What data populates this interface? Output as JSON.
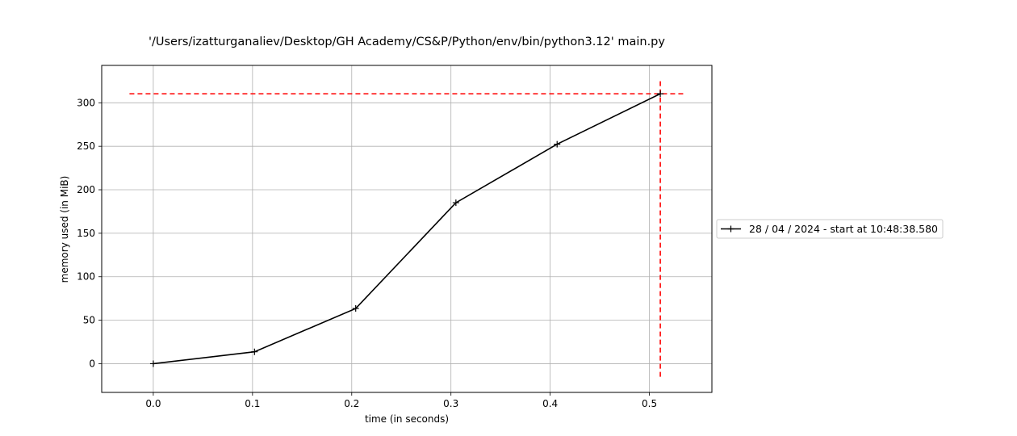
{
  "chart_data": {
    "type": "line",
    "title": "'/Users/izatturganaliev/Desktop/GH Academy/CS&P/Python/env/bin/python3.12' main.py",
    "xlabel": "time (in seconds)",
    "ylabel": "memory used (in MiB)",
    "xlim": [
      -0.052,
      0.563
    ],
    "ylim": [
      -33,
      343
    ],
    "xticks": [
      0.0,
      0.1,
      0.2,
      0.3,
      0.4,
      0.5
    ],
    "xtick_labels": [
      "0.0",
      "0.1",
      "0.2",
      "0.3",
      "0.4",
      "0.5"
    ],
    "yticks": [
      0,
      50,
      100,
      150,
      200,
      250,
      300
    ],
    "ytick_labels": [
      "0",
      "50",
      "100",
      "150",
      "200",
      "250",
      "300"
    ],
    "grid": true,
    "legend_position": "outside-right",
    "series": [
      {
        "name": "28 / 04 / 2024 - start at 10:48:38.580",
        "color": "#000000",
        "marker": "plus",
        "x": [
          0.0,
          0.102,
          0.204,
          0.305,
          0.407,
          0.511
        ],
        "y": [
          0.0,
          13.7,
          63.5,
          185.1,
          252.4,
          310.4
        ]
      }
    ],
    "reference_lines": [
      {
        "orientation": "horizontal",
        "y": 310.4,
        "x_range": [
          -0.024,
          0.535
        ],
        "color": "#ff0000",
        "style": "dashed"
      },
      {
        "orientation": "vertical",
        "x": 0.511,
        "y_range": [
          -15,
          326
        ],
        "color": "#ff0000",
        "style": "dashed"
      }
    ]
  }
}
